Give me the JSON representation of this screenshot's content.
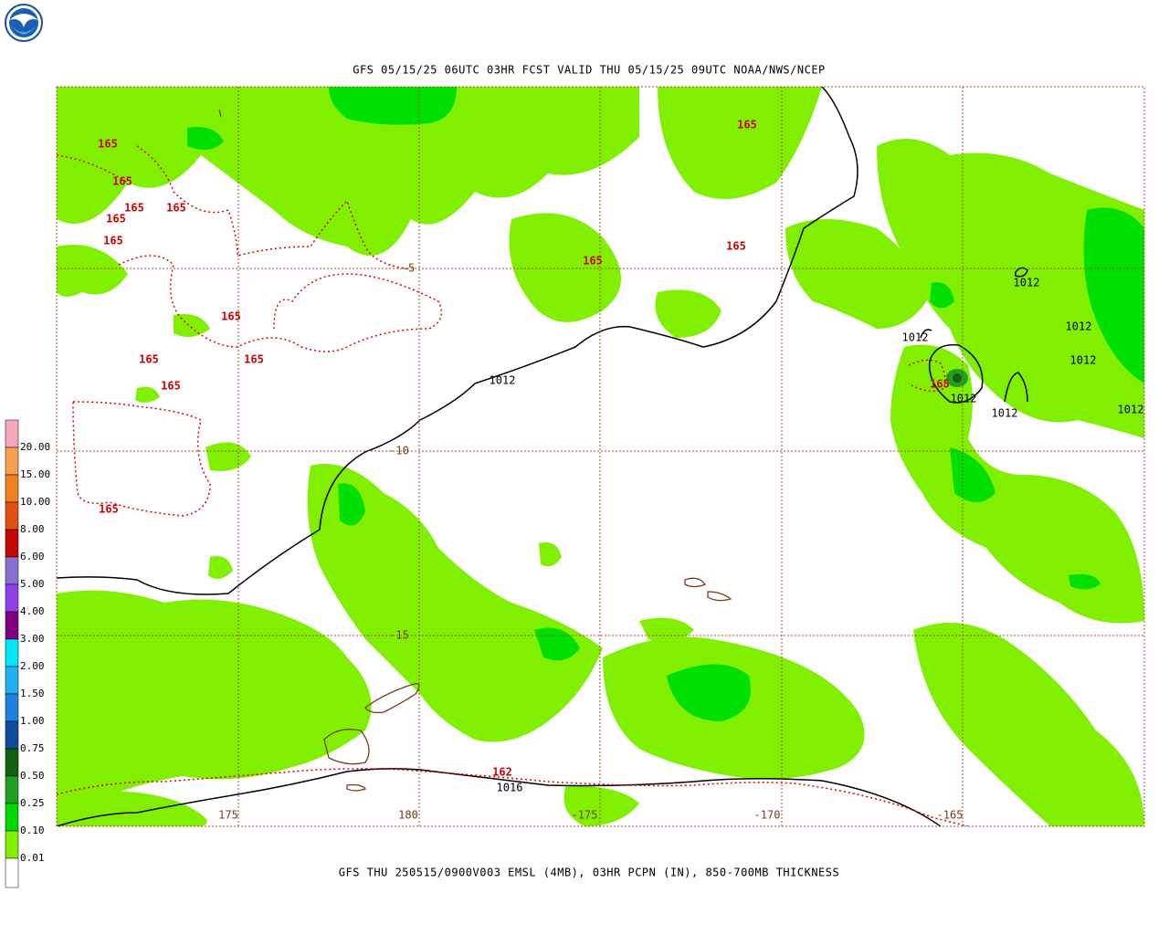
{
  "header": {
    "title": "GFS 05/15/25 06UTC 03HR FCST VALID THU 05/15/25 09UTC NOAA/NWS/NCEP"
  },
  "footer": {
    "caption": "GFS THU 250515/0900V003 EMSL (4MB), 03HR PCPN (IN), 850-700MB THICKNESS"
  },
  "colorbar": {
    "labels": [
      "20.00",
      "15.00",
      "10.00",
      "8.00",
      "6.00",
      "5.00",
      "4.00",
      "3.00",
      "2.00",
      "1.50",
      "1.00",
      "0.75",
      "0.50",
      "0.25",
      "0.10",
      "0.01"
    ],
    "colors": [
      "#f4a8b8",
      "#f4a050",
      "#f08020",
      "#e05010",
      "#c80808",
      "#8870d0",
      "#9040e8",
      "#800080",
      "#00e8f8",
      "#20b0f0",
      "#2080e0",
      "#104c9c",
      "#106010",
      "#20a020",
      "#00d800",
      "#80f000",
      "#ffffff"
    ]
  },
  "axes": {
    "latitude_labels": [
      "-5",
      "-10",
      "-15"
    ],
    "longitude_labels": [
      "175",
      "180",
      "-175",
      "-170",
      "-165"
    ]
  },
  "contour_labels": {
    "pressure": [
      "1012",
      "1012",
      "1012",
      "1012",
      "1012",
      "1012",
      "1012",
      "1012",
      "1016"
    ],
    "thickness": [
      "165",
      "165",
      "165",
      "165",
      "165",
      "165",
      "165",
      "165",
      "165",
      "165",
      "165",
      "165",
      "165",
      "165",
      "165",
      "162"
    ]
  }
}
